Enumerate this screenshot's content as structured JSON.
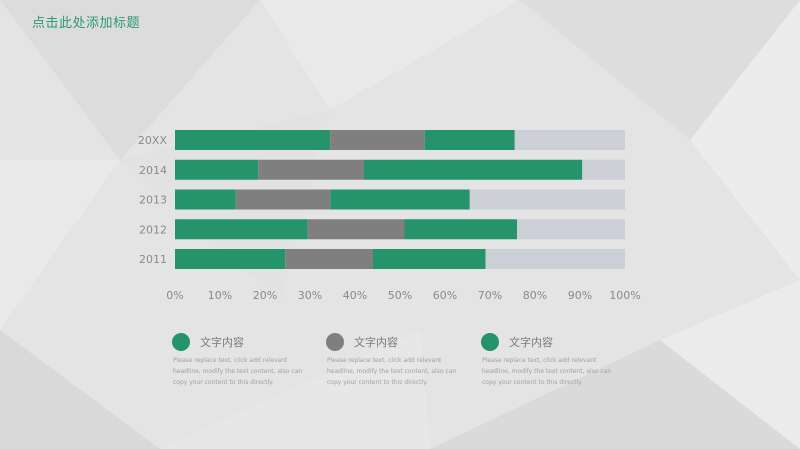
{
  "header": {
    "title": "点击此处添加标题"
  },
  "colors": {
    "green": "#25946a",
    "gray": "#7f7f7f",
    "light": "#ccd0d6",
    "accent_text": "#2a9a6f"
  },
  "chart_data": {
    "type": "bar",
    "orientation": "horizontal",
    "stacked": true,
    "categories": [
      "20XX",
      "2014",
      "2013",
      "2012",
      "2011"
    ],
    "series": [
      {
        "values": [
          34.5,
          18.5,
          13.5,
          29.5,
          24.5
        ],
        "color": "green"
      },
      {
        "values": [
          21,
          23.5,
          21,
          21.5,
          19.5
        ],
        "color": "gray"
      },
      {
        "values": [
          20,
          48.5,
          31,
          25,
          25
        ],
        "color": "green"
      },
      {
        "values": [
          24.5,
          9.5,
          34.5,
          24,
          31
        ],
        "color": "light"
      }
    ],
    "x_ticks": [
      "0%",
      "10%",
      "20%",
      "30%",
      "40%",
      "50%",
      "60%",
      "70%",
      "80%",
      "90%",
      "100%"
    ],
    "xlim": [
      0,
      100
    ],
    "grid": false,
    "legend": "bottom"
  },
  "legend": [
    {
      "title": "文字内容",
      "desc": "Please replace text, click add relevant headline, modify the text content, also can copy your content to this directly.",
      "color": "#25946a"
    },
    {
      "title": "文字内容",
      "desc": "Please replace text, click add relevant headline, modify the text content, also can copy your content to this directly.",
      "color": "#7f7f7f"
    },
    {
      "title": "文字内容",
      "desc": "Please replace text, click add relevant headline, modify the text content, also can copy your content to this directly.",
      "color": "#25946a"
    }
  ]
}
